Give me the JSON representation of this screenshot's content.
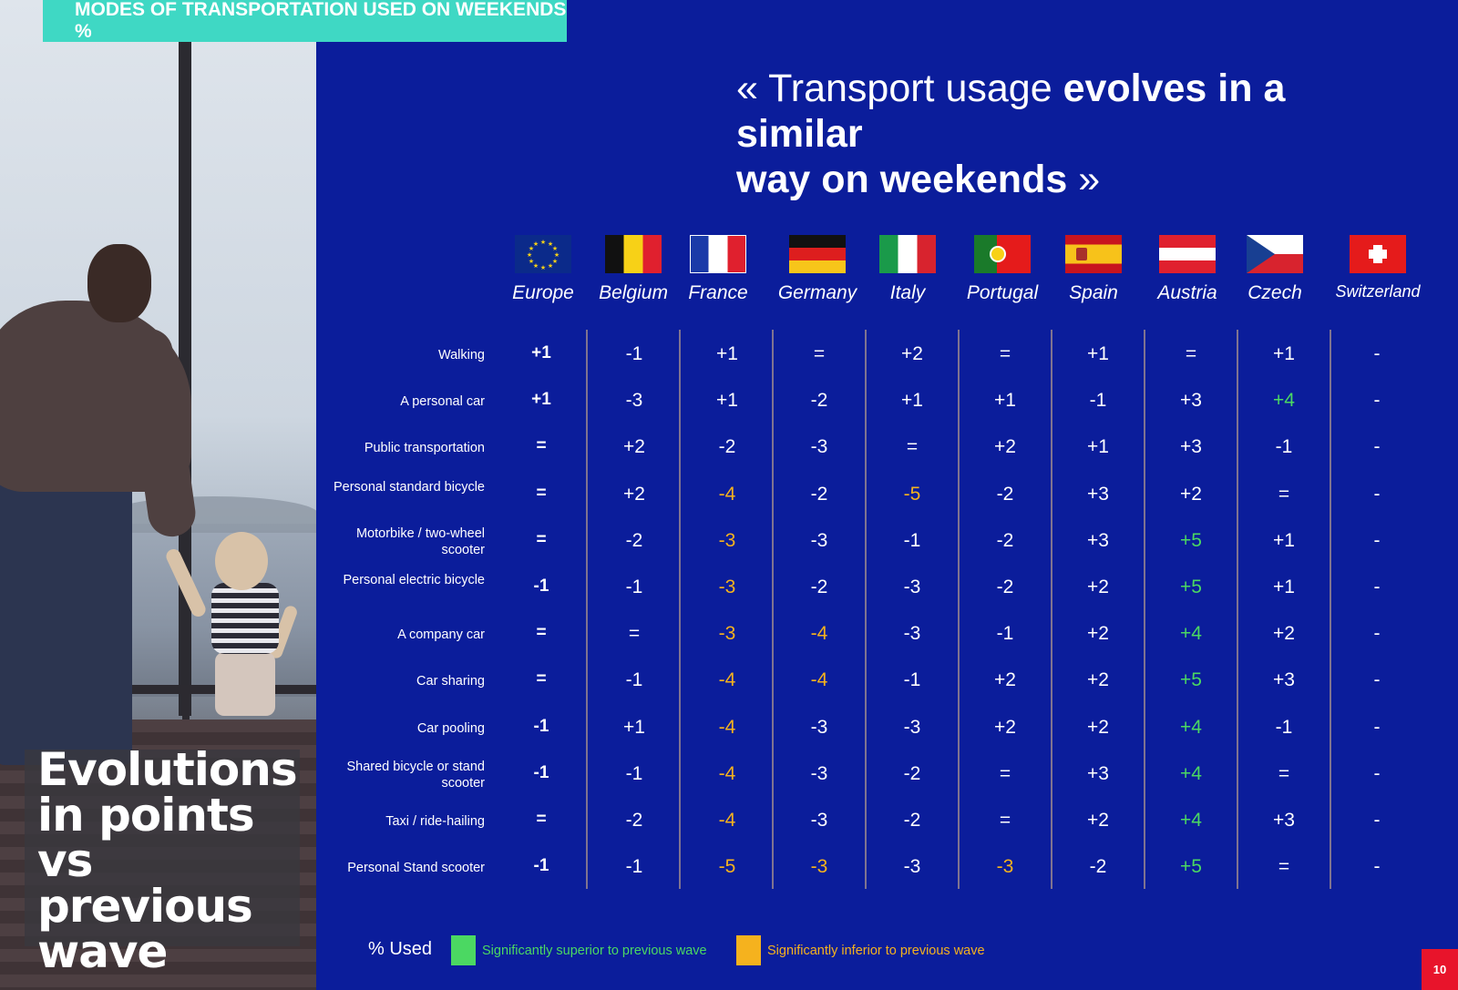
{
  "header": {
    "tag": "MODES OF TRANSPORTATION USED ON WEEKENDS %"
  },
  "quote": {
    "open": "« Transport usage ",
    "bold1": "evolves in a similar",
    "bold2": "way on weekends",
    "close": " »"
  },
  "headline": {
    "line1": "Evolutions",
    "line2": "in points vs",
    "line3": "previous",
    "line4": "wave"
  },
  "colors": {
    "background": "#0b1d9b",
    "superior": "#4bd862",
    "inferior": "#f5b21e",
    "tag": "#3fd8c4",
    "page_badge": "#e8142b"
  },
  "countries": [
    "Europe",
    "Belgium",
    "France",
    "Germany",
    "Italy",
    "Portugal",
    "Spain",
    "Austria",
    "Czech",
    "Switzerland"
  ],
  "flag_icons": [
    "eu-flag-icon",
    "belgium-flag-icon",
    "france-flag-icon",
    "germany-flag-icon",
    "italy-flag-icon",
    "portugal-flag-icon",
    "spain-flag-icon",
    "austria-flag-icon",
    "czech-flag-icon",
    "switzerland-flag-icon"
  ],
  "rows": [
    {
      "label": "Walking",
      "values": [
        "+1",
        "-1",
        "+1",
        "=",
        "+2",
        "=",
        "+1",
        "=",
        "+1",
        "-"
      ],
      "status": [
        "",
        "",
        "",
        "",
        "",
        "",
        "",
        "",
        "",
        ""
      ]
    },
    {
      "label": "A personal car",
      "values": [
        "+1",
        "-3",
        "+1",
        "-2",
        "+1",
        "+1",
        "-1",
        "+3",
        "+4",
        "-"
      ],
      "status": [
        "",
        "",
        "",
        "",
        "",
        "",
        "",
        "",
        "superior",
        ""
      ]
    },
    {
      "label": "Public transportation",
      "values": [
        "=",
        "+2",
        "-2",
        "-3",
        "=",
        "+2",
        "+1",
        "+3",
        "-1",
        "-"
      ],
      "status": [
        "",
        "",
        "",
        "",
        "",
        "",
        "",
        "",
        "",
        ""
      ]
    },
    {
      "label": "Personal standard bicycle",
      "values": [
        "=",
        "+2",
        "-4",
        "-2",
        "-5",
        "-2",
        "+3",
        "+2",
        "=",
        "-"
      ],
      "status": [
        "",
        "",
        "inferior",
        "",
        "inferior",
        "",
        "",
        "",
        "",
        ""
      ]
    },
    {
      "label": "Motorbike / two-wheel scooter",
      "values": [
        "=",
        "-2",
        "-3",
        "-3",
        "-1",
        "-2",
        "+3",
        "+5",
        "+1",
        "-"
      ],
      "status": [
        "",
        "",
        "inferior",
        "",
        "",
        "",
        "",
        "superior",
        "",
        ""
      ]
    },
    {
      "label": "Personal electric bicycle",
      "values": [
        "-1",
        "-1",
        "-3",
        "-2",
        "-3",
        "-2",
        "+2",
        "+5",
        "+1",
        "-"
      ],
      "status": [
        "",
        "",
        "inferior",
        "",
        "",
        "",
        "",
        "superior",
        "",
        ""
      ]
    },
    {
      "label": "A company car",
      "values": [
        "=",
        "=",
        "-3",
        "-4",
        "-3",
        "-1",
        "+2",
        "+4",
        "+2",
        "-"
      ],
      "status": [
        "",
        "",
        "inferior",
        "inferior",
        "",
        "",
        "",
        "superior",
        "",
        ""
      ]
    },
    {
      "label": "Car sharing",
      "values": [
        "=",
        "-1",
        "-4",
        "-4",
        "-1",
        "+2",
        "+2",
        "+5",
        "+3",
        "-"
      ],
      "status": [
        "",
        "",
        "inferior",
        "inferior",
        "",
        "",
        "",
        "superior",
        "",
        ""
      ]
    },
    {
      "label": "Car pooling",
      "values": [
        "-1",
        "+1",
        "-4",
        "-3",
        "-3",
        "+2",
        "+2",
        "+4",
        "-1",
        "-"
      ],
      "status": [
        "",
        "",
        "inferior",
        "",
        "",
        "",
        "",
        "superior",
        "",
        ""
      ]
    },
    {
      "label": "Shared bicycle or stand scooter",
      "values": [
        "-1",
        "-1",
        "-4",
        "-3",
        "-2",
        "=",
        "+3",
        "+4",
        "=",
        "-"
      ],
      "status": [
        "",
        "",
        "inferior",
        "",
        "",
        "",
        "",
        "superior",
        "",
        ""
      ]
    },
    {
      "label": "Taxi / ride-hailing",
      "values": [
        "=",
        "-2",
        "-4",
        "-3",
        "-2",
        "=",
        "+2",
        "+4",
        "+3",
        "-"
      ],
      "status": [
        "",
        "",
        "inferior",
        "",
        "",
        "",
        "",
        "superior",
        "",
        ""
      ]
    },
    {
      "label": "Personal Stand scooter",
      "values": [
        "-1",
        "-1",
        "-5",
        "-3",
        "-3",
        "-3",
        "-2",
        "+5",
        "=",
        "-"
      ],
      "status": [
        "",
        "",
        "inferior",
        "inferior",
        "",
        "inferior",
        "",
        "superior",
        "",
        ""
      ]
    }
  ],
  "legend": {
    "used": "% Used",
    "superior": "Significantly superior to previous wave",
    "inferior": "Significantly inferior to previous wave"
  },
  "page": "10"
}
